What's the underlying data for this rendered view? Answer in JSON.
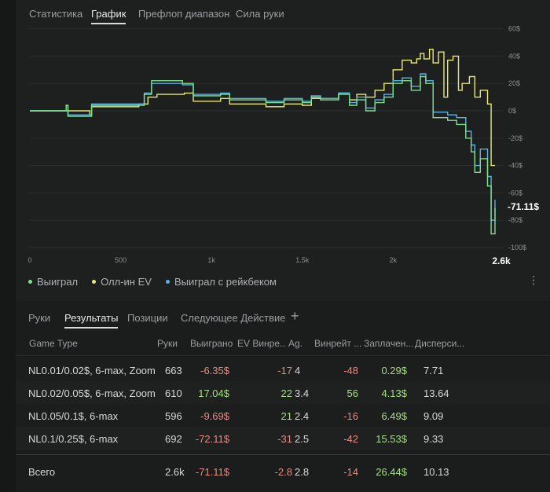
{
  "top_tabs": [
    {
      "label": "Статистика",
      "active": false
    },
    {
      "label": "График",
      "active": true
    },
    {
      "label": "Префлоп диапазон",
      "active": false
    },
    {
      "label": "Сила руки",
      "active": false
    }
  ],
  "chart_data": {
    "type": "line",
    "x_ticks": [
      "0",
      "500",
      "1k",
      "1.5k",
      "2k"
    ],
    "x_end_label": "2.6k",
    "x_range": [
      0,
      2561
    ],
    "y_ticks": [
      "60$",
      "40$",
      "20$",
      "0$",
      "-20$",
      "-40$",
      "-60$",
      "-80$",
      "-100$"
    ],
    "y_range": [
      -100,
      60
    ],
    "last_value_label": "-71.11$",
    "grid": true,
    "legend_position": "bottom-left",
    "series": [
      {
        "name": "Выиграл",
        "color": "#7fe08a",
        "x": [
          0,
          100,
          200,
          210,
          330,
          340,
          500,
          630,
          670,
          840,
          900,
          1050,
          1100,
          1250,
          1300,
          1400,
          1500,
          1550,
          1600,
          1700,
          1760,
          1800,
          1850,
          1900,
          1950,
          2000,
          2050,
          2100,
          2150,
          2180,
          2220,
          2250,
          2300,
          2350,
          2400,
          2430,
          2450,
          2480,
          2520,
          2540,
          2561
        ],
        "y": [
          0,
          0,
          4,
          -4,
          -4,
          4,
          4,
          12,
          22,
          20,
          11,
          12,
          8,
          8,
          6,
          8,
          6,
          10,
          8,
          12,
          4,
          8,
          0,
          6,
          10,
          20,
          22,
          15,
          25,
          20,
          -5,
          -5,
          -7,
          -10,
          -20,
          -30,
          -45,
          -35,
          -55,
          -90,
          -71.11
        ]
      },
      {
        "name": "Олл-ин EV",
        "color": "#e8e872",
        "x": [
          0,
          100,
          200,
          330,
          340,
          500,
          600,
          650,
          700,
          850,
          900,
          1050,
          1100,
          1250,
          1300,
          1400,
          1500,
          1550,
          1600,
          1700,
          1760,
          1800,
          1850,
          1900,
          1950,
          2000,
          2050,
          2100,
          2130,
          2150,
          2170,
          2200,
          2220,
          2250,
          2280,
          2300,
          2330,
          2360,
          2380,
          2420,
          2450,
          2480,
          2520,
          2540,
          2561
        ],
        "y": [
          0,
          0,
          0,
          -3,
          3,
          3,
          5,
          10,
          12,
          13,
          7,
          9,
          5,
          5,
          3,
          5,
          4,
          9,
          9,
          13,
          8,
          12,
          10,
          15,
          20,
          30,
          37,
          35,
          38,
          42,
          38,
          45,
          35,
          43,
          10,
          37,
          40,
          15,
          20,
          25,
          10,
          15,
          5,
          -40,
          -40
        ]
      },
      {
        "name": "Выиграл с рейкбеком",
        "color": "#58b1e8",
        "x": [
          0,
          100,
          200,
          210,
          330,
          340,
          500,
          630,
          670,
          840,
          900,
          1050,
          1100,
          1250,
          1300,
          1400,
          1500,
          1550,
          1600,
          1700,
          1760,
          1800,
          1850,
          1900,
          1950,
          2000,
          2050,
          2100,
          2150,
          2180,
          2220,
          2250,
          2300,
          2350,
          2400,
          2430,
          2450,
          2480,
          2520,
          2540,
          2561
        ],
        "y": [
          0,
          0,
          4,
          -3,
          -3,
          5,
          5,
          13,
          20,
          19,
          12,
          13,
          9,
          9,
          7,
          9,
          7,
          11,
          9,
          13,
          6,
          10,
          2,
          8,
          12,
          22,
          24,
          18,
          27,
          22,
          -1,
          -1,
          -3,
          -5,
          -15,
          -25,
          -40,
          -28,
          -48,
          -80,
          -65
        ]
      }
    ]
  },
  "legend": [
    {
      "label": "Выиграл",
      "color": "#7fe08a"
    },
    {
      "label": "Олл-ин EV",
      "color": "#e8e872"
    },
    {
      "label": "Выиграл с рейкбеком",
      "color": "#58b1e8"
    }
  ],
  "sub_tabs": [
    {
      "label": "Руки",
      "active": false
    },
    {
      "label": "Результаты",
      "active": true
    },
    {
      "label": "Позиции",
      "active": false
    },
    {
      "label": "Следующее Действие",
      "active": false
    }
  ],
  "table": {
    "headers": [
      "Game Type",
      "Руки",
      "Выиграно",
      "EV Винре...",
      "Ag.",
      "Винрейт ...",
      "Заплачен...",
      "Дисперси..."
    ],
    "rows": [
      [
        "NL0.01/0.02$, 6-max, Zoom",
        "663",
        "-6.35$",
        "-17",
        "4",
        "-48",
        "0.29$",
        "7.71"
      ],
      [
        "NL0.02/0.05$, 6-max, Zoom",
        "610",
        "17.04$",
        "22",
        "3.4",
        "56",
        "4.13$",
        "13.64"
      ],
      [
        "NL0.05/0.1$, 6-max",
        "596",
        "-9.69$",
        "21",
        "2.4",
        "-16",
        "6.49$",
        "9.09"
      ],
      [
        "NL0.1/0.25$, 6-max",
        "692",
        "-72.11$",
        "-31",
        "2.5",
        "-42",
        "15.53$",
        "9.33"
      ]
    ],
    "total": [
      "Всего",
      "2.6k",
      "-71.11$",
      "-2.8",
      "2.8",
      "-14",
      "26.44$",
      "10.13"
    ]
  },
  "icons": {
    "more": "kebab-menu-icon",
    "add": "plus-icon"
  }
}
